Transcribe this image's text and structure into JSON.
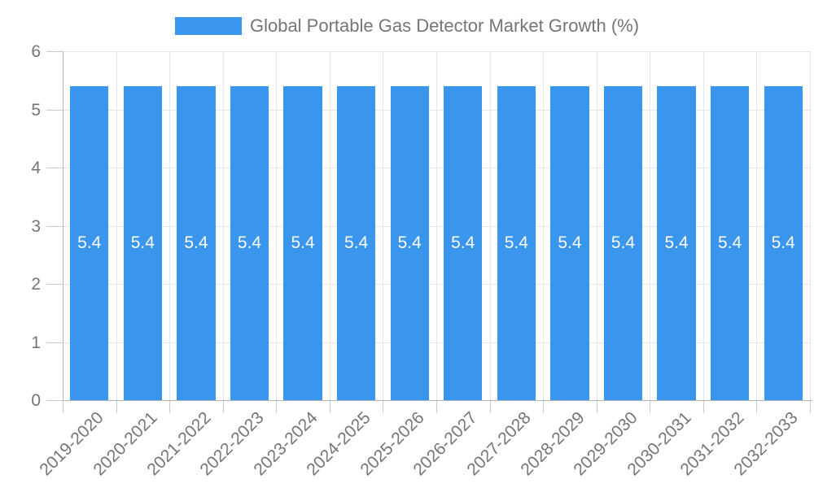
{
  "chart_data": {
    "type": "bar",
    "title": "Global Portable Gas Detector Market Growth (%)",
    "legend": {
      "label": "Global Portable Gas Detector Market Growth (%)",
      "position": "top"
    },
    "categories": [
      "2019-2020",
      "2020-2021",
      "2021-2022",
      "2022-2023",
      "2023-2024",
      "2024-2025",
      "2025-2026",
      "2026-2027",
      "2027-2028",
      "2028-2029",
      "2029-2030",
      "2030-2031",
      "2031-2032",
      "2032-2033"
    ],
    "series": [
      {
        "name": "Global Portable Gas Detector Market Growth (%)",
        "values": [
          5.4,
          5.4,
          5.4,
          5.4,
          5.4,
          5.4,
          5.4,
          5.4,
          5.4,
          5.4,
          5.4,
          5.4,
          5.4,
          5.4
        ]
      }
    ],
    "value_labels": [
      "5.4",
      "5.4",
      "5.4",
      "5.4",
      "5.4",
      "5.4",
      "5.4",
      "5.4",
      "5.4",
      "5.4",
      "5.4",
      "5.4",
      "5.4",
      "5.4"
    ],
    "xlabel": "",
    "ylabel": "",
    "ylim": [
      0,
      6
    ],
    "yticks": [
      0,
      1,
      2,
      3,
      4,
      5,
      6
    ],
    "grid": true,
    "colors": {
      "bar": "#3a95ec",
      "axis_text": "#757575",
      "grid_line": "#e6e6e6",
      "axis_line": "#b3b3b3",
      "tick_line": "#c9c9c9",
      "value_label": "#ffffff",
      "background": "#ffffff"
    }
  }
}
